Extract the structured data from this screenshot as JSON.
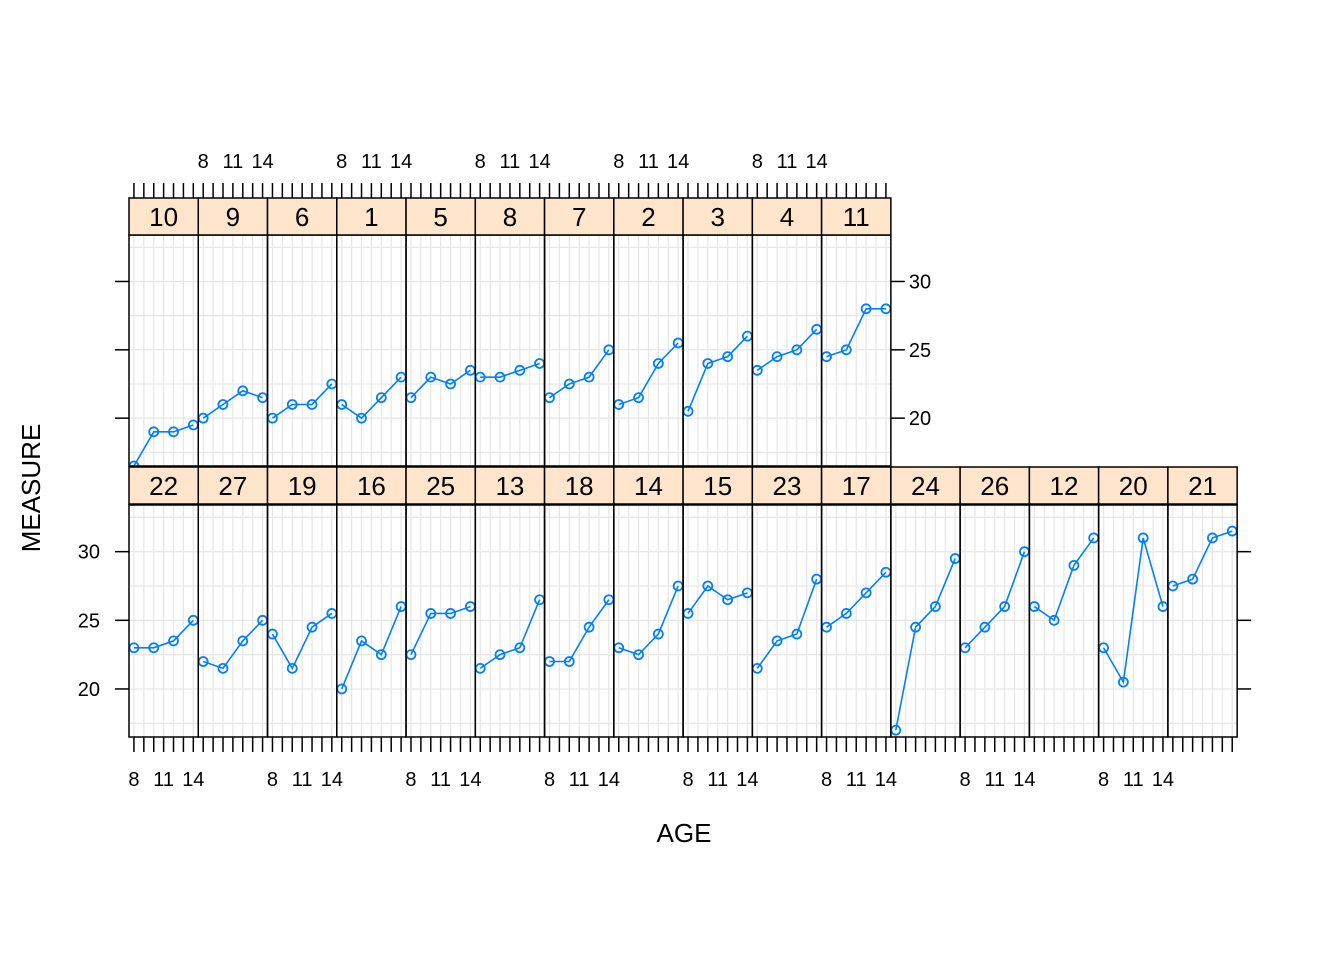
{
  "chart_data": {
    "type": "line",
    "xlabel": "AGE",
    "ylabel": "MEASURE",
    "x": [
      8,
      10,
      12,
      14
    ],
    "xticks": [
      8,
      11,
      14
    ],
    "xlim": [
      7.5,
      14.5
    ],
    "ylim": [
      16.5,
      33.4
    ],
    "yticks": [
      20,
      25,
      30
    ],
    "grid": true,
    "line_color": "#0080ff",
    "strip_color": "#ffe5cc",
    "panels": [
      {
        "label": "10",
        "values": [
          16.5,
          19,
          19,
          19.5
        ]
      },
      {
        "label": "9",
        "values": [
          20,
          21,
          22,
          21.5
        ]
      },
      {
        "label": "6",
        "values": [
          20,
          21,
          21,
          22.5
        ]
      },
      {
        "label": "1",
        "values": [
          21,
          20,
          21.5,
          23
        ]
      },
      {
        "label": "5",
        "values": [
          21.5,
          23,
          22.5,
          23.5
        ]
      },
      {
        "label": "8",
        "values": [
          23,
          23,
          23.5,
          24
        ]
      },
      {
        "label": "7",
        "values": [
          21.5,
          22.5,
          23,
          25
        ]
      },
      {
        "label": "2",
        "values": [
          21,
          21.5,
          24,
          25.5
        ]
      },
      {
        "label": "3",
        "values": [
          20.5,
          24,
          24.5,
          26
        ]
      },
      {
        "label": "4",
        "values": [
          23.5,
          24.5,
          25,
          26.5
        ]
      },
      {
        "label": "11",
        "values": [
          24.5,
          25,
          28,
          28
        ]
      },
      {
        "label": "22",
        "values": [
          23,
          23,
          23.5,
          25
        ]
      },
      {
        "label": "27",
        "values": [
          22,
          21.5,
          23.5,
          25
        ]
      },
      {
        "label": "19",
        "values": [
          24,
          21.5,
          24.5,
          25.5
        ]
      },
      {
        "label": "16",
        "values": [
          20,
          23.5,
          22.5,
          26
        ]
      },
      {
        "label": "25",
        "values": [
          22.5,
          25.5,
          25.5,
          26
        ]
      },
      {
        "label": "13",
        "values": [
          21.5,
          22.5,
          23,
          26.5
        ]
      },
      {
        "label": "18",
        "values": [
          22,
          22,
          24.5,
          26.5
        ]
      },
      {
        "label": "14",
        "values": [
          23,
          22.5,
          24,
          27.5
        ]
      },
      {
        "label": "15",
        "values": [
          25.5,
          27.5,
          26.5,
          27
        ]
      },
      {
        "label": "23",
        "values": [
          21.5,
          23.5,
          24,
          28
        ]
      },
      {
        "label": "17",
        "values": [
          24.5,
          25.5,
          27,
          28.5
        ]
      },
      {
        "label": "24",
        "values": [
          17,
          24.5,
          26,
          29.5
        ]
      },
      {
        "label": "26",
        "values": [
          23,
          24.5,
          26,
          30
        ]
      },
      {
        "label": "12",
        "values": [
          26,
          25,
          29,
          31
        ]
      },
      {
        "label": "20",
        "values": [
          23,
          20.5,
          31,
          26
        ]
      },
      {
        "label": "21",
        "values": [
          27.5,
          28,
          31,
          31.5
        ]
      }
    ]
  }
}
